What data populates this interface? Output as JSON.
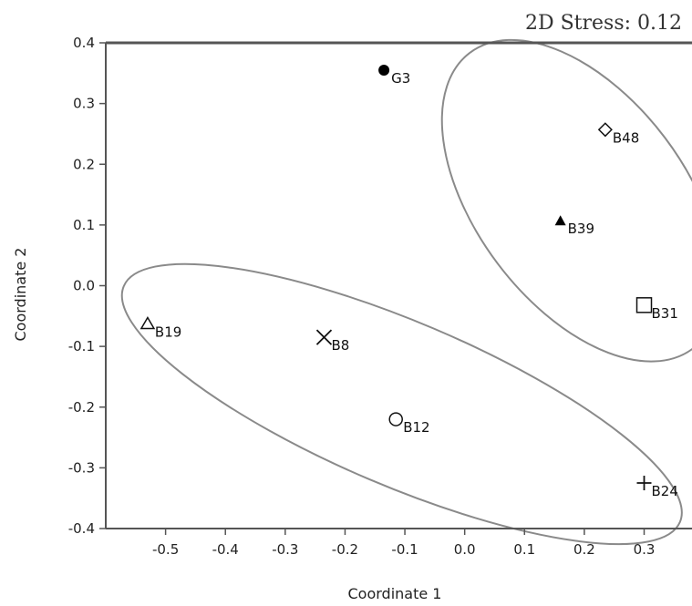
{
  "chart_data": {
    "type": "scatter",
    "annotation": "2D Stress: 0.12",
    "xlabel": "Coordinate 1",
    "ylabel": "Coordinate 2",
    "xlim": [
      -0.6,
      0.38
    ],
    "ylim": [
      -0.4,
      0.4
    ],
    "x_ticks": [
      "-0.5",
      "-0.4",
      "-0.3",
      "-0.2",
      "-0.1",
      "0.0",
      "0.1",
      "0.2",
      "0.3"
    ],
    "y_ticks": [
      "0.4",
      "0.3",
      "0.2",
      "0.1",
      "0.0",
      "-0.1",
      "-0.2",
      "-0.3",
      "-0.4"
    ],
    "grid": false,
    "points": [
      {
        "label": "G3",
        "x": -0.135,
        "y": 0.355,
        "marker": "filled-circle"
      },
      {
        "label": "B48",
        "x": 0.235,
        "y": 0.257,
        "marker": "diamond"
      },
      {
        "label": "B39",
        "x": 0.16,
        "y": 0.107,
        "marker": "filled-triangle"
      },
      {
        "label": "B31",
        "x": 0.3,
        "y": -0.032,
        "marker": "square"
      },
      {
        "label": "B19",
        "x": -0.53,
        "y": -0.063,
        "marker": "triangle"
      },
      {
        "label": "B8",
        "x": -0.235,
        "y": -0.085,
        "marker": "x"
      },
      {
        "label": "B12",
        "x": -0.115,
        "y": -0.22,
        "marker": "circle"
      },
      {
        "label": "B24",
        "x": 0.3,
        "y": -0.325,
        "marker": "plus"
      }
    ],
    "groups": [
      {
        "members": [
          "B48",
          "B39",
          "B31"
        ],
        "center": [
          0.195,
          0.14
        ],
        "radii": [
          0.175,
          0.305
        ],
        "angle_deg": -37
      },
      {
        "members": [
          "B19",
          "B8",
          "B12",
          "B24"
        ],
        "center": [
          -0.105,
          -0.195
        ],
        "radii": [
          0.505,
          0.135
        ],
        "angle_deg": 23
      }
    ]
  }
}
